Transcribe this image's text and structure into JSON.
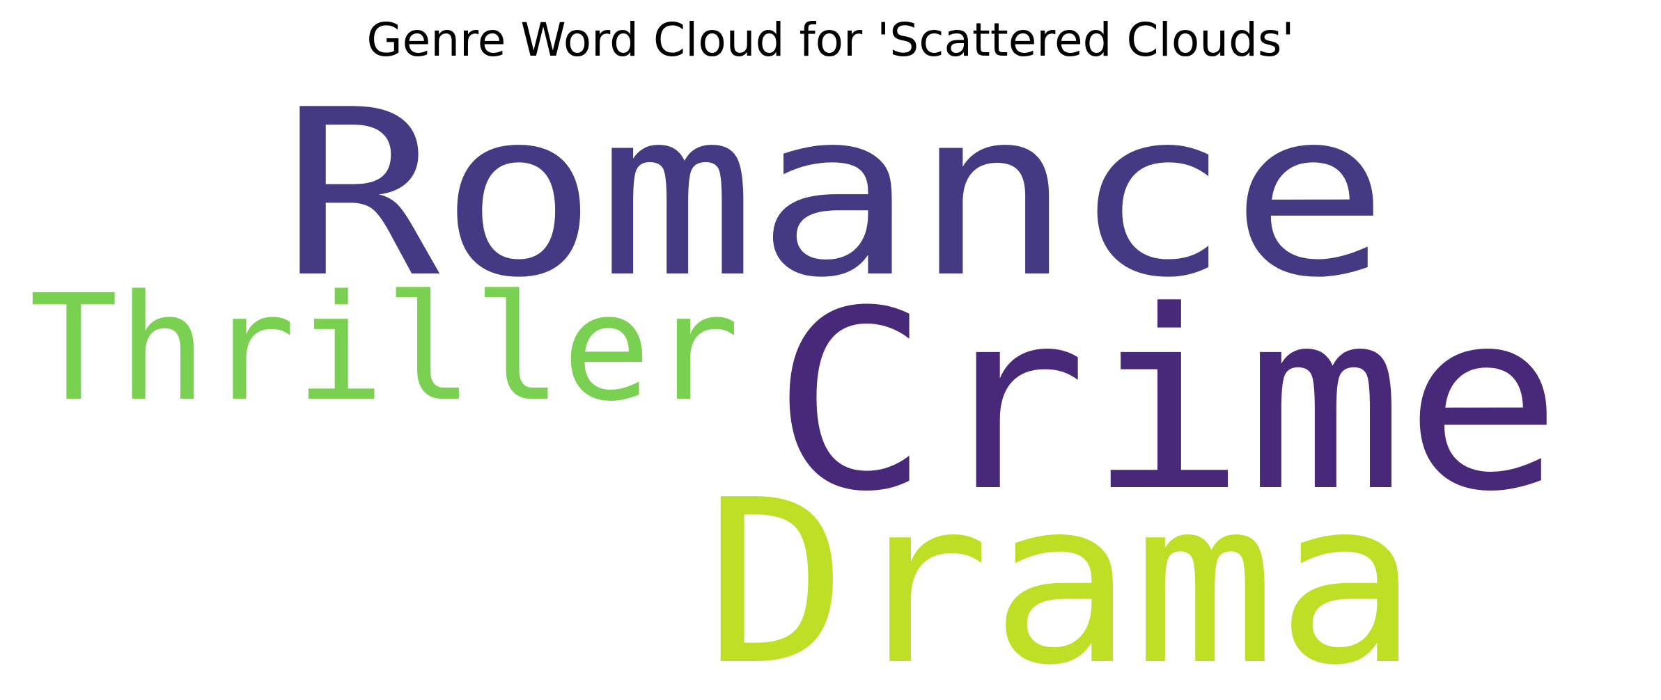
{
  "chart_data": {
    "type": "wordcloud",
    "title": "Genre Word Cloud for 'Scattered Clouds'",
    "colormap": "viridis",
    "background": "#ffffff",
    "words": [
      {
        "text": "Romance",
        "color": "#443983"
      },
      {
        "text": "Crime",
        "color": "#482979"
      },
      {
        "text": "Thriller",
        "color": "#7ad151"
      },
      {
        "text": "Drama",
        "color": "#bddf26"
      }
    ]
  }
}
